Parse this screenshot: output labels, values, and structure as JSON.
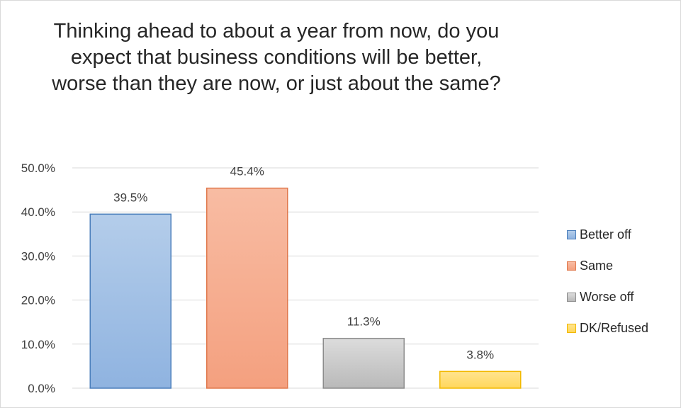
{
  "chart_data": {
    "type": "bar",
    "title": "Thinking ahead to about a year from now, do you expect that business conditions will be better, worse than they are now, or just about the same?",
    "categories": [
      "Better off",
      "Same",
      "Worse off",
      "DK/Refused"
    ],
    "values": [
      39.5,
      45.4,
      11.3,
      3.8
    ],
    "value_labels": [
      "39.5%",
      "45.4%",
      "11.3%",
      "3.8%"
    ],
    "ylim": [
      0,
      50
    ],
    "yticks": [
      "0.0%",
      "10.0%",
      "20.0%",
      "30.0%",
      "40.0%",
      "50.0%"
    ],
    "grid": true,
    "legend": "right",
    "colors": [
      {
        "top": "#b4cdea",
        "bottom": "#8fb3e0",
        "border": "#4a7ebb"
      },
      {
        "top": "#f8bca3",
        "bottom": "#f4a07f",
        "border": "#e0784c"
      },
      {
        "top": "#dcdcdc",
        "bottom": "#b9b9b9",
        "border": "#8c8c8c"
      },
      {
        "top": "#ffe48f",
        "bottom": "#ffd75c",
        "border": "#f2b900"
      }
    ]
  }
}
